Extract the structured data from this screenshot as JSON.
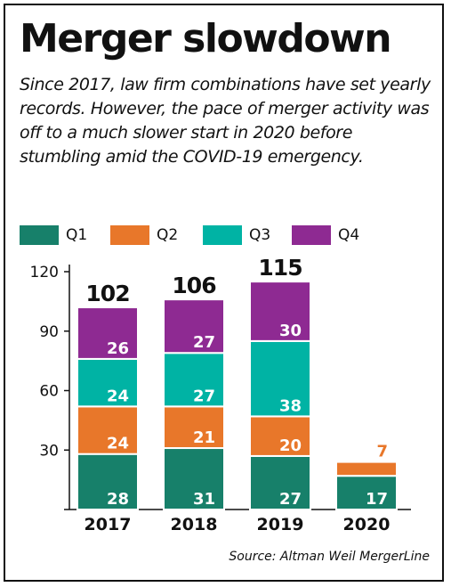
{
  "title": "Merger slowdown",
  "subtitle": "Since 2017, law firm combinations have set yearly records. However, the pace of merger activity was off to a much slower start in 2020 before stumbling amid the COVID-19 emergency.",
  "source": "Source: Altman Weil MergerLine",
  "colors": {
    "Q1": "#17806a",
    "Q2": "#e8772a",
    "Q3": "#00b3a4",
    "Q4": "#8e2a92"
  },
  "chart_data": {
    "type": "bar",
    "stacked": true,
    "categories": [
      "2017",
      "2018",
      "2019",
      "2020"
    ],
    "series": [
      {
        "name": "Q1",
        "values": [
          28,
          31,
          27,
          17
        ]
      },
      {
        "name": "Q2",
        "values": [
          24,
          21,
          20,
          7
        ]
      },
      {
        "name": "Q3",
        "values": [
          24,
          27,
          38,
          null
        ]
      },
      {
        "name": "Q4",
        "values": [
          26,
          27,
          30,
          null
        ]
      }
    ],
    "totals": [
      "102",
      "106",
      "115",
      ""
    ],
    "ylim": [
      0,
      120
    ],
    "yticks": [
      "0",
      "30",
      "60",
      "90",
      "120"
    ],
    "legend_position": "top"
  }
}
